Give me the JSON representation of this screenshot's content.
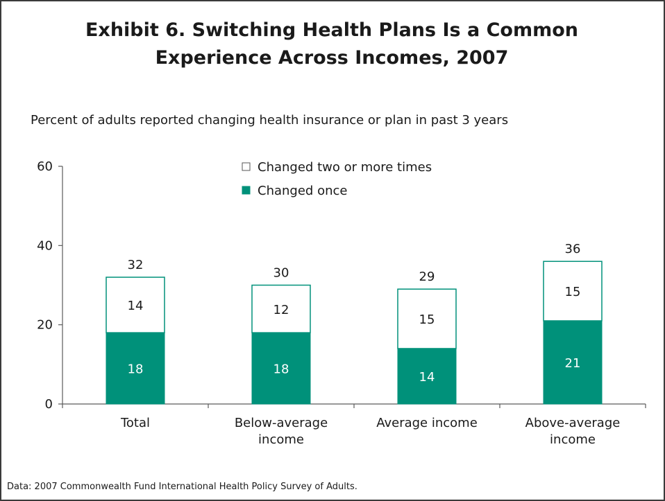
{
  "title": "Exhibit 6. Switching Health Plans Is a Common Experience Across Incomes, 2007",
  "subtitle": "Percent of adults reported changing health insurance or plan in past 3 years",
  "note": "Data: 2007 Commonwealth Fund International Health Policy Survey of Adults.",
  "colors": {
    "changed_once": "#00917a",
    "changed_two_plus": "#ffffff",
    "axis": "#5a5a5a"
  },
  "chart_data": {
    "type": "bar",
    "stacked": true,
    "categories": [
      "Total",
      "Below-average\nincome",
      "Average income",
      "Above-average\nincome"
    ],
    "series": [
      {
        "name": "Changed once",
        "values": [
          18,
          18,
          14,
          21
        ]
      },
      {
        "name": "Changed two or more times",
        "values": [
          14,
          12,
          15,
          15
        ]
      }
    ],
    "totals": [
      32,
      30,
      29,
      36
    ],
    "ylim": [
      0,
      60
    ],
    "yticks": [
      0,
      20,
      40,
      60
    ],
    "legend": [
      "Changed two or more times",
      "Changed once"
    ],
    "legend_placement": "top-center",
    "grid": false
  }
}
